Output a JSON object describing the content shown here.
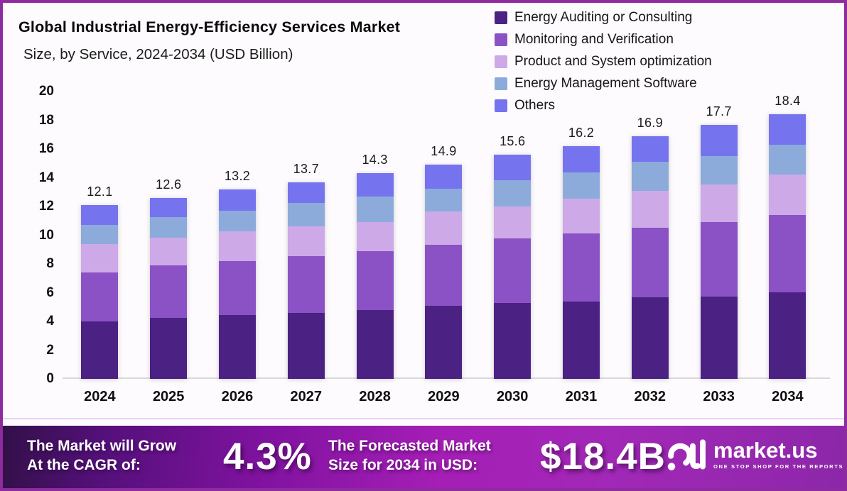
{
  "header": {
    "title": "Global Industrial Energy-Efficiency Services Market",
    "subtitle": "Size, by Service, 2024-2034 (USD Billion)"
  },
  "chart_data": {
    "type": "bar",
    "stacked": true,
    "title": "Global Industrial Energy-Efficiency Services Market Size, by Service, 2024-2034 (USD Billion)",
    "xlabel": "",
    "ylabel": "USD Billion",
    "ylim": [
      0,
      20
    ],
    "yticks": [
      0,
      2,
      4,
      6,
      8,
      10,
      12,
      14,
      16,
      18,
      20
    ],
    "grid": false,
    "legend_position": "top-right",
    "categories": [
      "2024",
      "2025",
      "2026",
      "2027",
      "2028",
      "2029",
      "2030",
      "2031",
      "2032",
      "2033",
      "2034"
    ],
    "totals": [
      12.1,
      12.6,
      13.2,
      13.7,
      14.3,
      14.9,
      15.6,
      16.2,
      16.9,
      17.7,
      18.4
    ],
    "series": [
      {
        "name": "Energy Auditing or Consulting",
        "color": "#4c2184",
        "values": [
          4.0,
          4.25,
          4.45,
          4.6,
          4.8,
          5.1,
          5.3,
          5.4,
          5.7,
          5.75,
          6.0
        ]
      },
      {
        "name": "Monitoring and Verification",
        "color": "#8a52c5",
        "values": [
          3.4,
          3.65,
          3.75,
          3.95,
          4.1,
          4.25,
          4.5,
          4.7,
          4.8,
          5.15,
          5.4
        ]
      },
      {
        "name": "Product and System optimization",
        "color": "#cda9e8",
        "values": [
          2.0,
          1.95,
          2.05,
          2.05,
          2.0,
          2.3,
          2.2,
          2.45,
          2.6,
          2.65,
          2.8
        ]
      },
      {
        "name": "Energy Management Software",
        "color": "#8cabdb",
        "values": [
          1.3,
          1.4,
          1.45,
          1.65,
          1.8,
          1.6,
          1.85,
          1.8,
          2.0,
          1.95,
          2.1
        ]
      },
      {
        "name": "Others",
        "color": "#7673ef",
        "values": [
          1.4,
          1.35,
          1.5,
          1.45,
          1.6,
          1.65,
          1.75,
          1.85,
          1.8,
          2.2,
          2.1
        ]
      }
    ]
  },
  "banner": {
    "left_line1": "The Market will Grow",
    "left_line2": "At the CAGR of:",
    "cagr_value": "4.3%",
    "mid_line1": "The Forecasted Market",
    "mid_line2": "Size for 2034 in USD:",
    "forecast_value": "$18.4B"
  },
  "logo": {
    "text": "market.us",
    "tagline": "ONE STOP SHOP FOR THE REPORTS"
  },
  "colors": {
    "frame_border": "#8e2b9e",
    "background": "#fdfbfd",
    "axis_line": "#d9d9d9",
    "banner_gradient_left": "#321048",
    "banner_gradient_mid": "#a51eb6",
    "banner_gradient_right": "#8c27a9"
  }
}
